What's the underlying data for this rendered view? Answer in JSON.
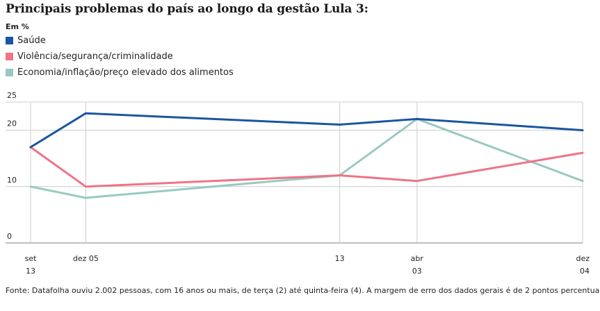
{
  "title": "Principais problemas do país ao longo da gestão Lula 3:",
  "unit_label": "Em %",
  "source": "Fonte: Datafolha ouviu 2.002 pessoas, com 16 anos ou mais, de terça (2) até quinta-feira (4). A margem de erro dos dados gerais é de 2 pontos percentuais",
  "chart_data": {
    "type": "line",
    "title": "Principais problemas do país ao longo da gestão Lula 3:",
    "subtitle": "Em %",
    "xlabel": "",
    "ylabel": "",
    "x": [
      {
        "line1": "set",
        "line2": "13"
      },
      {
        "line1": "dez 05",
        "line2": ""
      },
      {
        "line1": "13",
        "line2": ""
      },
      {
        "line1": "abr",
        "line2": "03"
      },
      {
        "line1": "dez",
        "line2": "04"
      }
    ],
    "x_position_index": [
      0,
      1,
      5.6,
      7,
      10
    ],
    "yticks": [
      0,
      10,
      20,
      25
    ],
    "ylim": [
      0,
      25
    ],
    "grid": true,
    "legend_placement": "top-left",
    "series": [
      {
        "name": "Saúde",
        "color": "#1a56a0",
        "values": [
          17,
          23,
          21,
          22,
          20
        ]
      },
      {
        "name": "Violência/segurança/criminalidade",
        "color": "#f07386",
        "values": [
          17,
          10,
          12,
          11,
          16
        ]
      },
      {
        "name": "Economia/inflação/preço elevado dos alimentos",
        "color": "#98c9c1",
        "values": [
          10,
          8,
          12,
          22,
          11
        ]
      }
    ]
  }
}
